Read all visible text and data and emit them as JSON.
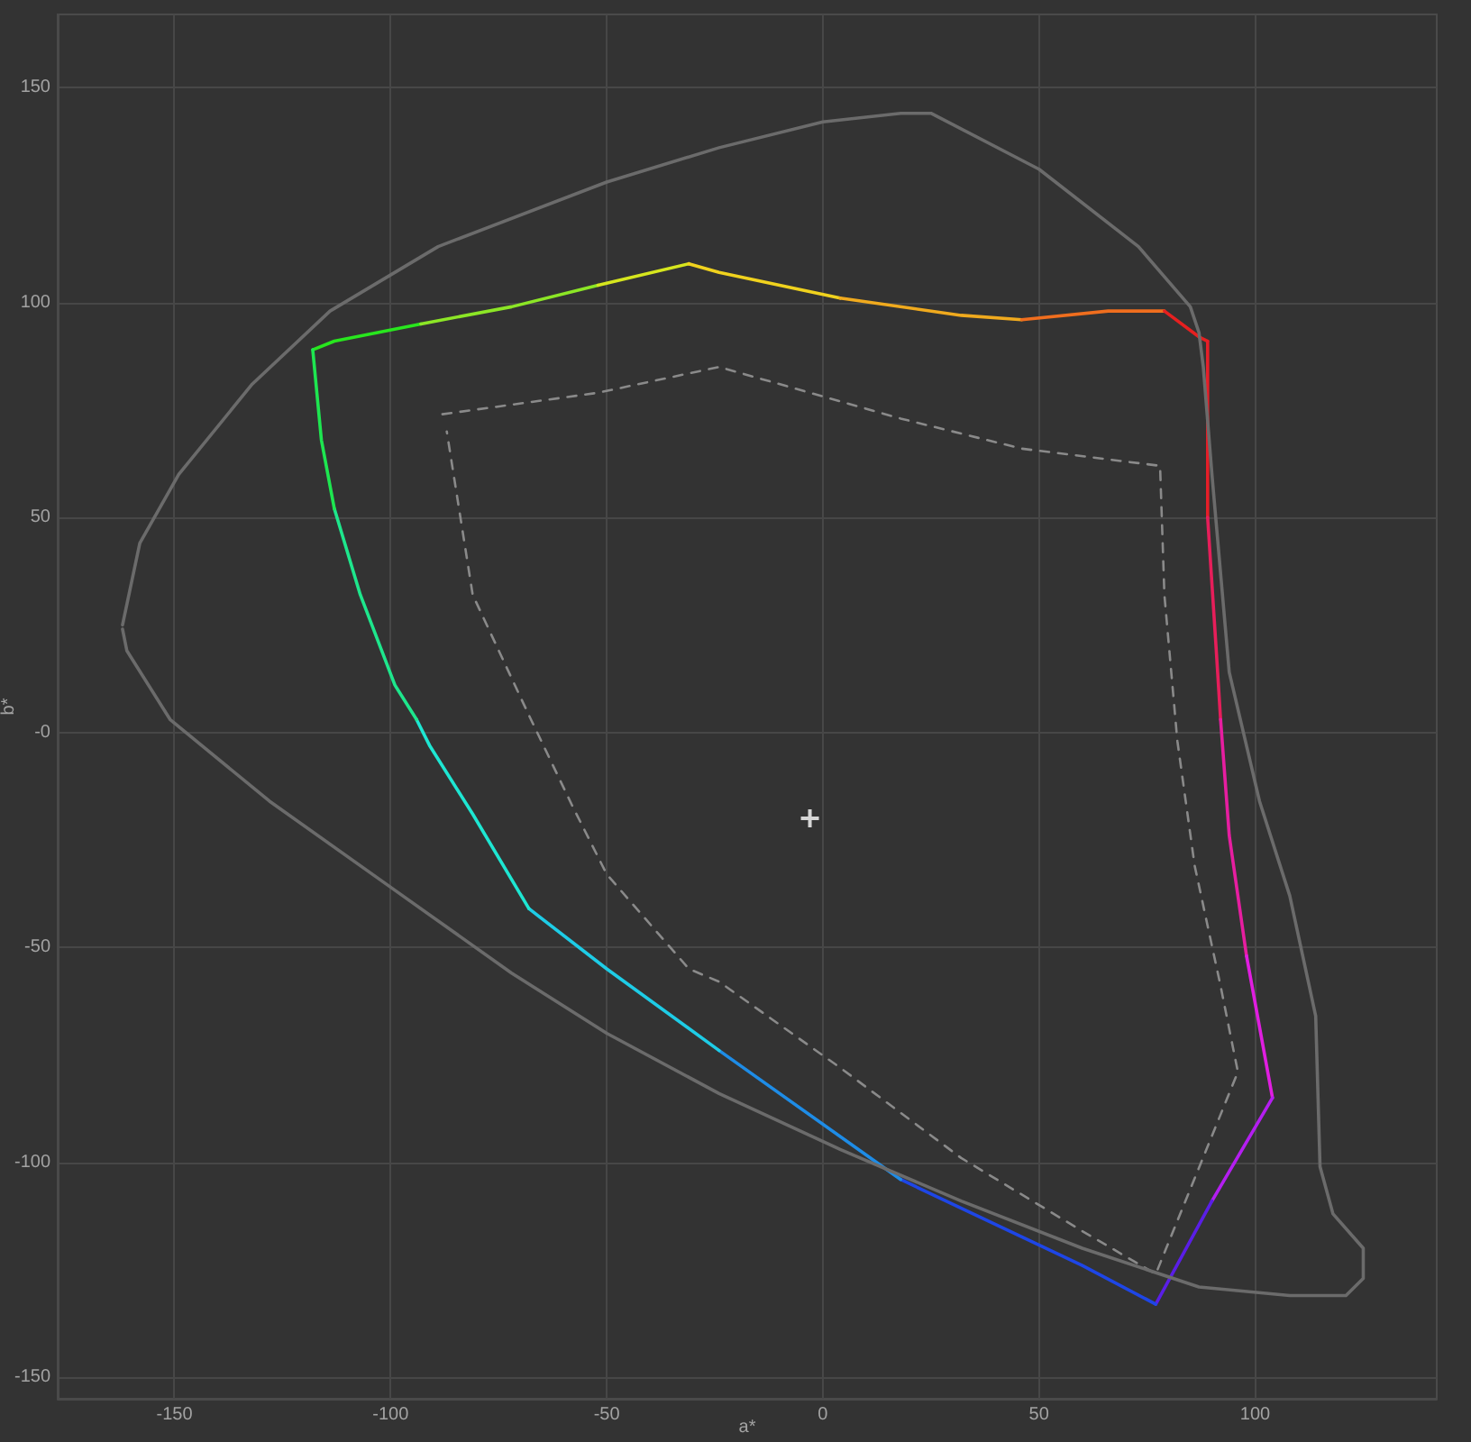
{
  "chart_data": {
    "type": "line",
    "xlabel": "a*",
    "ylabel": "b*",
    "xlim": [
      -177,
      142
    ],
    "ylim": [
      -155,
      167
    ],
    "xticks": [
      -150,
      -100,
      -50,
      0,
      50,
      100
    ],
    "yticks": [
      -150,
      -100,
      -50,
      {
        "value": 0,
        "label": "-0"
      },
      50,
      100,
      150
    ],
    "grid": true,
    "marker": "none",
    "line_style": "solid",
    "series": [
      {
        "color": "#28e61e",
        "x": [
          -118,
          -113,
          -93
        ],
        "values": [
          89,
          91,
          95
        ]
      },
      {
        "color": "#8ce626",
        "x": [
          -93,
          -72,
          -52
        ],
        "values": [
          95,
          99,
          104
        ]
      },
      {
        "color": "#d6e61e",
        "x": [
          -52,
          -31
        ],
        "values": [
          104,
          109
        ]
      },
      {
        "color": "#f0d21e",
        "x": [
          -31,
          -24,
          4
        ],
        "values": [
          109,
          107,
          101
        ]
      },
      {
        "color": "#f0aa1e",
        "x": [
          4,
          32,
          46
        ],
        "values": [
          101,
          97,
          96
        ]
      },
      {
        "color": "#f06e1e",
        "x": [
          46,
          66,
          79
        ],
        "values": [
          96,
          98,
          98
        ]
      },
      {
        "color": "#e62020",
        "x": [
          79,
          87,
          89
        ],
        "values": [
          98,
          92,
          91
        ]
      },
      {
        "color": "#e61e28",
        "x": [
          89,
          89,
          89
        ],
        "values": [
          91,
          85,
          50
        ]
      },
      {
        "color": "#e61e5a",
        "x": [
          89,
          91,
          92
        ],
        "values": [
          50,
          19,
          3
        ]
      },
      {
        "color": "#e61ea0",
        "x": [
          92,
          94,
          98
        ],
        "values": [
          3,
          -24,
          -52
        ]
      },
      {
        "color": "#e01ee0",
        "x": [
          98,
          104
        ],
        "values": [
          -52,
          -85
        ]
      },
      {
        "color": "#b41ef0",
        "x": [
          104,
          90
        ],
        "values": [
          -85,
          -109
        ]
      },
      {
        "color": "#5a1ee6",
        "x": [
          90,
          77
        ],
        "values": [
          -109,
          -133
        ]
      },
      {
        "color": "#1e46e6",
        "x": [
          77,
          60,
          18
        ],
        "values": [
          -133,
          -124,
          -104
        ]
      },
      {
        "color": "#1e8ce6",
        "x": [
          18,
          -24
        ],
        "values": [
          -104,
          -74
        ]
      },
      {
        "color": "#1ecce6",
        "x": [
          -24,
          -50,
          -68
        ],
        "values": [
          -74,
          -55,
          -41
        ]
      },
      {
        "color": "#1ee6d2",
        "x": [
          -68,
          -81,
          -91,
          -94
        ],
        "values": [
          -41,
          -19,
          -3,
          3
        ]
      },
      {
        "color": "#1ee68c",
        "x": [
          -94,
          -99,
          -107,
          -113
        ],
        "values": [
          3,
          11,
          32,
          52
        ]
      },
      {
        "color": "#1ee650",
        "x": [
          -113,
          -116,
          -118
        ],
        "values": [
          52,
          68,
          89
        ]
      },
      {
        "color": "#8a8a8a",
        "line_style": "dashed",
        "x": [
          -88,
          -52,
          -24,
          18,
          46,
          78,
          79,
          82,
          86,
          92,
          96,
          77,
          60,
          32,
          4,
          -24,
          -31,
          -50,
          -58,
          -68,
          -81,
          -87
        ],
        "values": [
          74,
          79,
          85,
          73,
          66,
          62,
          32,
          -2,
          -31,
          -59,
          -79,
          -126,
          -116,
          -99,
          -78,
          -58,
          -55,
          -33,
          -17,
          4,
          32,
          70
        ]
      },
      {
        "color": "#6b6b6b",
        "x": [
          -162,
          -158,
          -149,
          -132,
          -114,
          -89,
          -50,
          -24,
          0,
          18,
          25,
          50,
          73,
          85,
          87,
          88,
          90,
          94,
          101,
          108,
          114,
          115,
          118,
          125,
          125,
          121,
          108,
          87,
          60,
          32,
          4,
          -24,
          -50,
          -72,
          -100,
          -128,
          -151,
          -161,
          -162
        ],
        "values": [
          25,
          44,
          60,
          81,
          98,
          113,
          128,
          136,
          142,
          144,
          144,
          131,
          113,
          99,
          93,
          85,
          60,
          14,
          -16,
          -38,
          -66,
          -101,
          -112,
          -120,
          -127,
          -131,
          -131,
          -129,
          -120,
          -109,
          -97,
          -84,
          -70,
          -56,
          -36,
          -16,
          3,
          19,
          24
        ]
      },
      {
        "type": "scatter",
        "marker": "cross",
        "color": "#ffffff",
        "x": [
          -3
        ],
        "values": [
          -20
        ]
      }
    ]
  }
}
